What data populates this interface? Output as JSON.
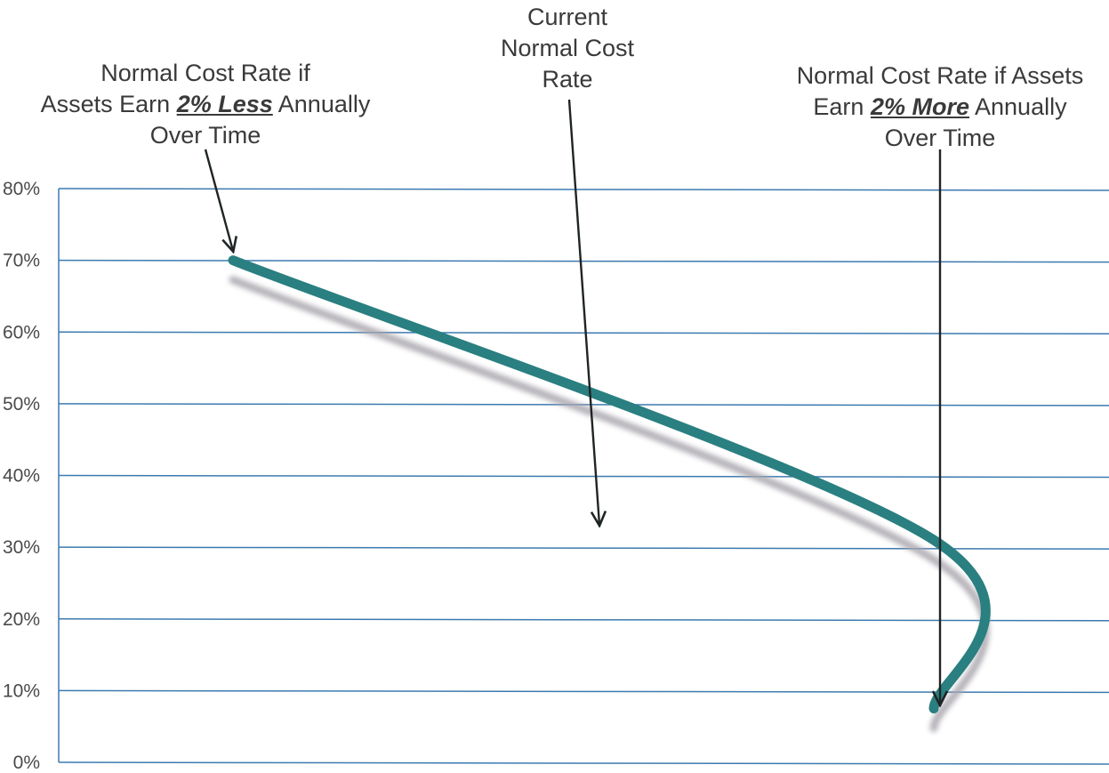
{
  "chart_data": {
    "type": "line",
    "title": "",
    "xlabel": "",
    "ylabel": "",
    "ylim": [
      0,
      80
    ],
    "y_ticks": [
      "0%",
      "10%",
      "20%",
      "30%",
      "40%",
      "50%",
      "60%",
      "70%",
      "80%"
    ],
    "grid": true,
    "series": [
      {
        "color": "#2a7f80",
        "x": [
          0,
          2,
          4
        ],
        "values": [
          70,
          31,
          7.5
        ]
      }
    ],
    "annotations": [
      {
        "id": "less",
        "lines": [
          [
            "Normal Cost Rate if"
          ],
          [
            "Assets Earn ",
            "2% Less",
            " Annually"
          ],
          [
            "Over Time"
          ]
        ],
        "emphasis": "2% Less",
        "point_x": 0
      },
      {
        "id": "current",
        "lines": [
          [
            "Current"
          ],
          [
            "Normal Cost"
          ],
          [
            "Rate"
          ]
        ],
        "point_x": 2
      },
      {
        "id": "more",
        "lines": [
          [
            "Normal Cost Rate if Assets"
          ],
          [
            "Earn ",
            "2% More",
            " Annually"
          ],
          [
            "Over Time"
          ]
        ],
        "emphasis": "2% More",
        "point_x": 4
      }
    ]
  }
}
